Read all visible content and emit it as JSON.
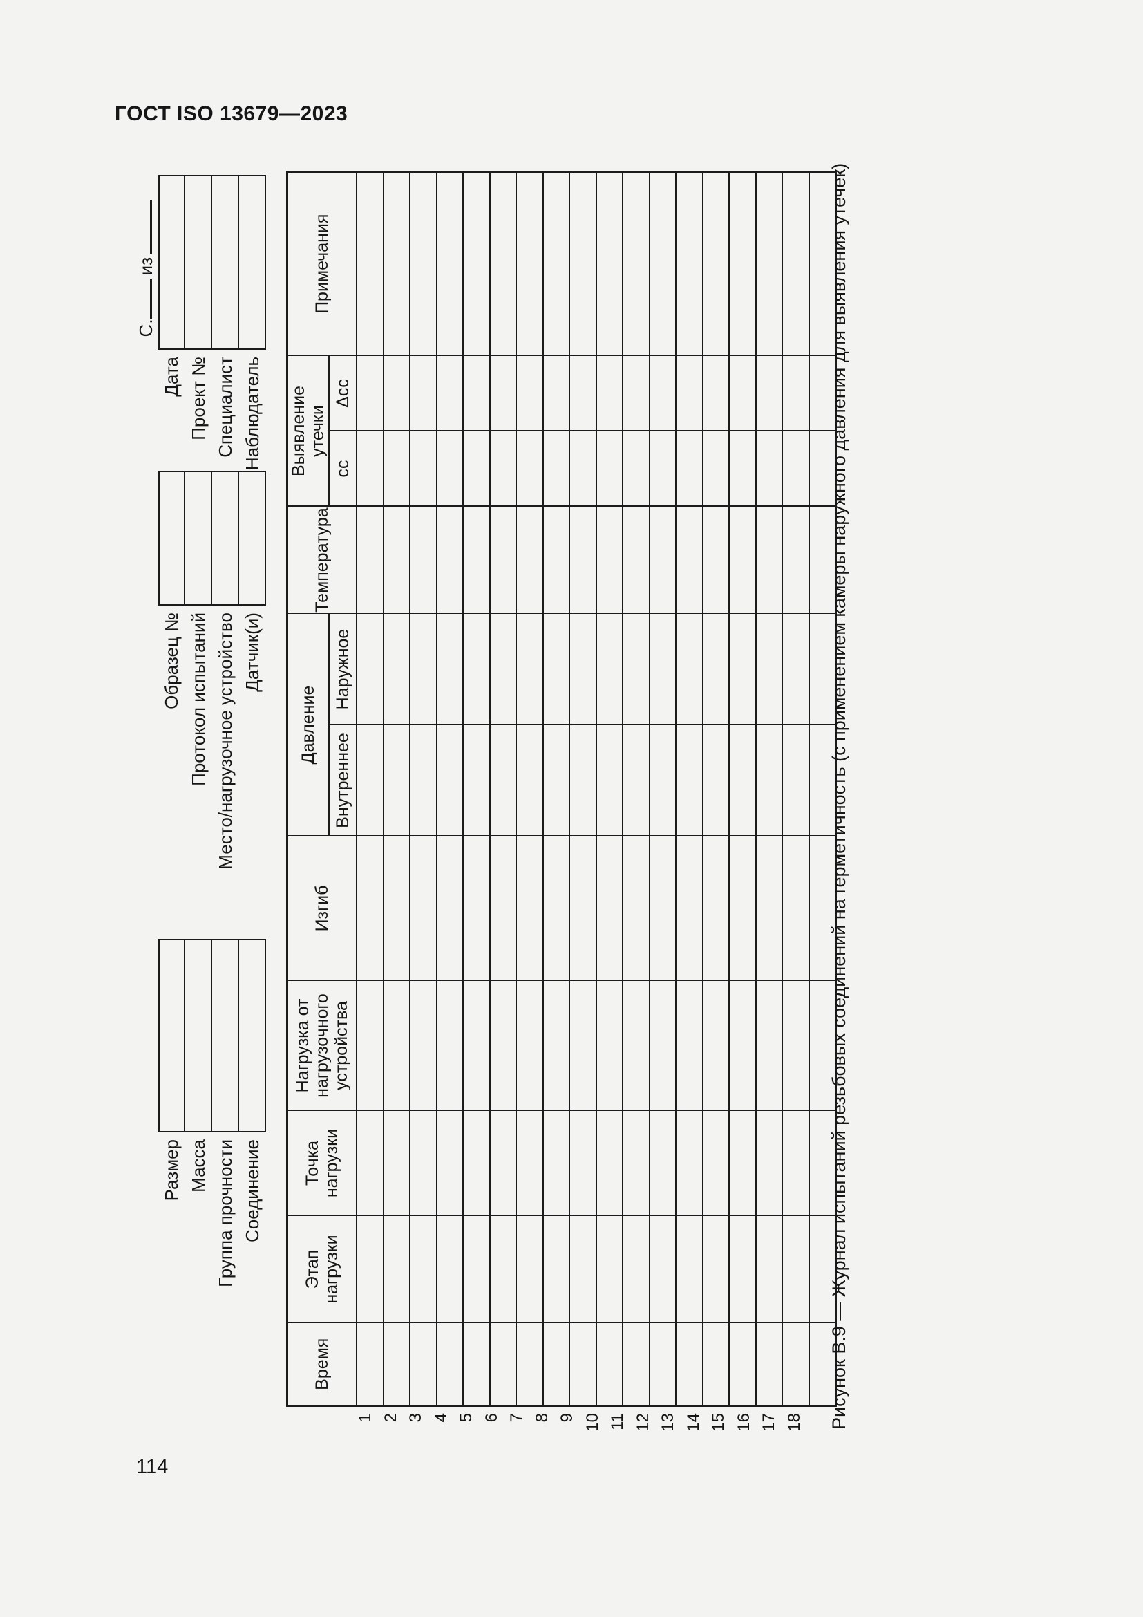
{
  "page": {
    "header": "ГОСТ ISO 13679—2023",
    "number": "114"
  },
  "form": {
    "sheet_line": {
      "prefix": "С.",
      "of": "из"
    },
    "field_groups": [
      {
        "id": "specimen",
        "fields": [
          "Размер",
          "Масса",
          "Группа прочности",
          "Соединение"
        ]
      },
      {
        "id": "test",
        "fields": [
          "Образец №",
          "Протокол испытаний",
          "Место/нагрузочное устройство",
          "Датчик(и)"
        ]
      },
      {
        "id": "admin",
        "fields": [
          "Дата",
          "Проект №",
          "Специалист",
          "Наблюдатель"
        ]
      }
    ],
    "table": {
      "columns": [
        {
          "id": "time",
          "lines": [
            "Время"
          ]
        },
        {
          "id": "load-step",
          "lines": [
            "Этап",
            "нагрузки"
          ]
        },
        {
          "id": "load-point",
          "lines": [
            "Точка",
            "нагрузки"
          ]
        },
        {
          "id": "frame-load",
          "lines": [
            "Нагрузка от",
            "нагрузочного",
            "устройства"
          ]
        },
        {
          "id": "bending",
          "lines": [
            "Изгиб"
          ]
        },
        {
          "id": "pressure",
          "lines": [
            "Давление"
          ],
          "sub": [
            "Внутреннее",
            "Наружное"
          ]
        },
        {
          "id": "temperature",
          "lines": [
            "Температура"
          ]
        },
        {
          "id": "leak-detection",
          "lines": [
            "Выявление",
            "утечки"
          ],
          "sub": [
            "сс",
            "Δсс"
          ]
        },
        {
          "id": "notes",
          "lines": [
            "Примечания"
          ]
        }
      ],
      "row_numbers": [
        "1",
        "2",
        "3",
        "4",
        "5",
        "6",
        "7",
        "8",
        "9",
        "10",
        "11",
        "12",
        "13",
        "14",
        "15",
        "16",
        "17",
        "18"
      ]
    },
    "caption": "Рисунок В.9 — Журнал испытаний резьбовых соединений на герметичность (с применением камеры наружного давления для выявления утечек)"
  }
}
